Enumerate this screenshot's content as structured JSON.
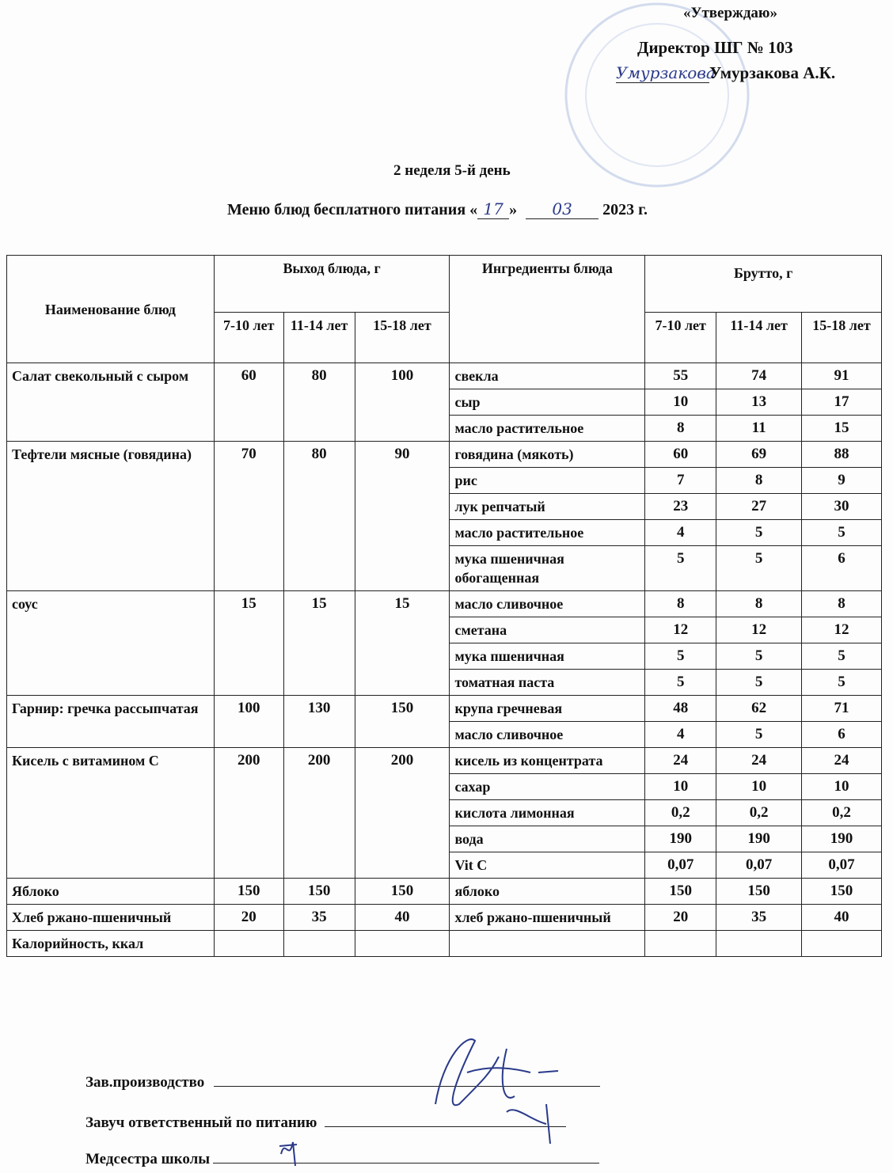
{
  "approval": {
    "label": "«Утверждаю»",
    "director": "Директор ШГ № 103",
    "name": "Умурзакова А.К.",
    "signature": "Умурзакова"
  },
  "title": {
    "week_day": "2 неделя 5-й день",
    "menu_prefix": "Меню блюд бесплатного питания «",
    "day": "17",
    "menu_mid": "»",
    "month": "03",
    "year": "2023 г."
  },
  "table": {
    "headers": {
      "dish": "Наименование блюд",
      "output": "Выход блюда, г",
      "ingredients": "Ингредиенты блюда",
      "brutto": "Брутто, г",
      "ages": [
        "7-10 лет",
        "11-14 лет",
        "15-18 лет"
      ]
    },
    "dishes": [
      {
        "name": "Салат свекольный с сыром",
        "output": [
          "60",
          "80",
          "100"
        ],
        "ingredients": [
          {
            "name": "свекла",
            "brutto": [
              "55",
              "74",
              "91"
            ]
          },
          {
            "name": "сыр",
            "brutto": [
              "10",
              "13",
              "17"
            ]
          },
          {
            "name": "масло растительное",
            "brutto": [
              "8",
              "11",
              "15"
            ]
          }
        ]
      },
      {
        "name": "Тефтели мясные (говядина)",
        "output": [
          "70",
          "80",
          "90"
        ],
        "ingredients": [
          {
            "name": "говядина (мякоть)",
            "brutto": [
              "60",
              "69",
              "88"
            ]
          },
          {
            "name": "рис",
            "brutto": [
              "7",
              "8",
              "9"
            ]
          },
          {
            "name": "лук репчатый",
            "brutto": [
              "23",
              "27",
              "30"
            ]
          },
          {
            "name": "масло растительное",
            "brutto": [
              "4",
              "5",
              "5"
            ]
          },
          {
            "name": "мука пшеничная обогащенная",
            "brutto": [
              "5",
              "5",
              "6"
            ]
          }
        ]
      },
      {
        "name": "соус",
        "output": [
          "15",
          "15",
          "15"
        ],
        "ingredients": [
          {
            "name": "масло сливочное",
            "brutto": [
              "8",
              "8",
              "8"
            ]
          },
          {
            "name": "сметана",
            "brutto": [
              "12",
              "12",
              "12"
            ]
          },
          {
            "name": "мука пшеничная",
            "brutto": [
              "5",
              "5",
              "5"
            ]
          },
          {
            "name": "томатная паста",
            "brutto": [
              "5",
              "5",
              "5"
            ]
          }
        ]
      },
      {
        "name": "Гарнир: гречка рассыпчатая",
        "output": [
          "100",
          "130",
          "150"
        ],
        "ingredients": [
          {
            "name": "крупа гречневая",
            "brutto": [
              "48",
              "62",
              "71"
            ]
          },
          {
            "name": "масло сливочное",
            "brutto": [
              "4",
              "5",
              "6"
            ]
          }
        ]
      },
      {
        "name": "Кисель с витамином С",
        "output": [
          "200",
          "200",
          "200"
        ],
        "ingredients": [
          {
            "name": "кисель из концентрата",
            "brutto": [
              "24",
              "24",
              "24"
            ]
          },
          {
            "name": "сахар",
            "brutto": [
              "10",
              "10",
              "10"
            ]
          },
          {
            "name": "кислота лимонная",
            "brutto": [
              "0,2",
              "0,2",
              "0,2"
            ]
          },
          {
            "name": "вода",
            "brutto": [
              "190",
              "190",
              "190"
            ]
          },
          {
            "name": "Vit C",
            "brutto": [
              "0,07",
              "0,07",
              "0,07"
            ]
          }
        ]
      },
      {
        "name": "Яблоко",
        "output": [
          "150",
          "150",
          "150"
        ],
        "ingredients": [
          {
            "name": "яблоко",
            "brutto": [
              "150",
              "150",
              "150"
            ]
          }
        ]
      },
      {
        "name": "Хлеб ржано-пшеничный",
        "output": [
          "20",
          "35",
          "40"
        ],
        "ingredients": [
          {
            "name": "хлеб ржано-пшеничный",
            "brutto": [
              "20",
              "35",
              "40"
            ]
          }
        ]
      }
    ],
    "calories_label": "Калорийность, ккал"
  },
  "signatures": {
    "production": "Зав.производство",
    "deputy": "Завуч ответственный по питанию",
    "nurse": "Медсестра школы"
  },
  "colors": {
    "ink": "#111111",
    "stamp": "#9fb4d8",
    "pen": "#2a3a8a"
  }
}
